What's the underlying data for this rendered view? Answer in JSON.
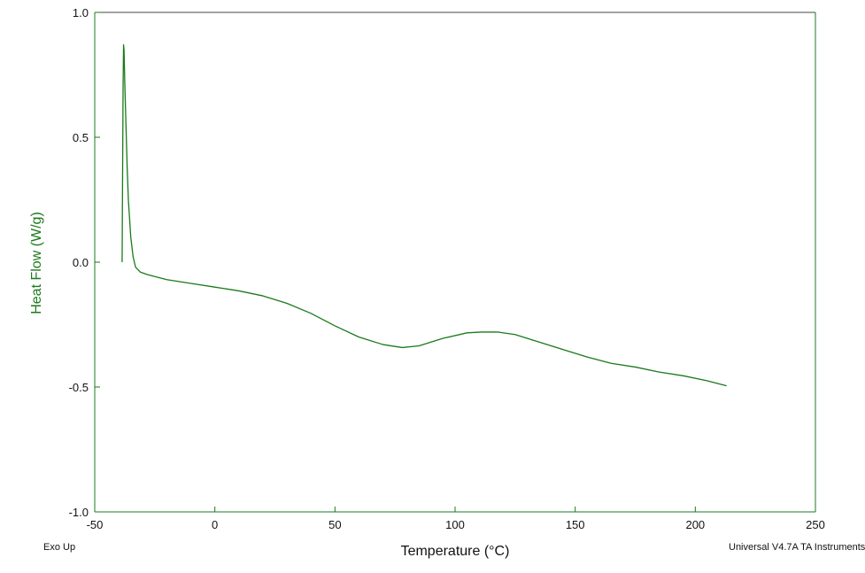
{
  "chart_data": {
    "type": "line",
    "xlabel": "Temperature (°C)",
    "ylabel": "Heat Flow (W/g)",
    "xlim": [
      -50,
      250
    ],
    "ylim": [
      -1.0,
      1.0
    ],
    "x_ticks": [
      "-50",
      "0",
      "50",
      "100",
      "150",
      "200",
      "250"
    ],
    "y_ticks": [
      "1.0",
      "0.5",
      "0.0",
      "-0.5",
      "-1.0"
    ],
    "grid": false,
    "series": [
      {
        "color": "#1a7a1a",
        "points": [
          [
            -38.6,
            0.0
          ],
          [
            -38.4,
            0.35
          ],
          [
            -38.2,
            0.7
          ],
          [
            -38.0,
            0.87
          ],
          [
            -37.8,
            0.85
          ],
          [
            -37.5,
            0.72
          ],
          [
            -37.0,
            0.55
          ],
          [
            -36.5,
            0.38
          ],
          [
            -36.0,
            0.25
          ],
          [
            -35.0,
            0.1
          ],
          [
            -34.0,
            0.02
          ],
          [
            -33.0,
            -0.02
          ],
          [
            -31.0,
            -0.04
          ],
          [
            -28.0,
            -0.05
          ],
          [
            -20.0,
            -0.07
          ],
          [
            -10.0,
            -0.085
          ],
          [
            0.0,
            -0.1
          ],
          [
            10.0,
            -0.115
          ],
          [
            20.0,
            -0.135
          ],
          [
            30.0,
            -0.165
          ],
          [
            40.0,
            -0.205
          ],
          [
            50.0,
            -0.255
          ],
          [
            60.0,
            -0.3
          ],
          [
            70.0,
            -0.33
          ],
          [
            78.0,
            -0.342
          ],
          [
            85.0,
            -0.335
          ],
          [
            95.0,
            -0.305
          ],
          [
            105.0,
            -0.283
          ],
          [
            111.0,
            -0.28
          ],
          [
            118.0,
            -0.28
          ],
          [
            125.0,
            -0.29
          ],
          [
            135.0,
            -0.32
          ],
          [
            145.0,
            -0.35
          ],
          [
            155.0,
            -0.38
          ],
          [
            165.0,
            -0.405
          ],
          [
            175.0,
            -0.42
          ],
          [
            185.0,
            -0.44
          ],
          [
            195.0,
            -0.455
          ],
          [
            205.0,
            -0.475
          ],
          [
            213.0,
            -0.495
          ]
        ]
      }
    ]
  },
  "footer": {
    "left_note": "Exo Up",
    "right_note": "Universal V4.7A TA Instruments"
  }
}
